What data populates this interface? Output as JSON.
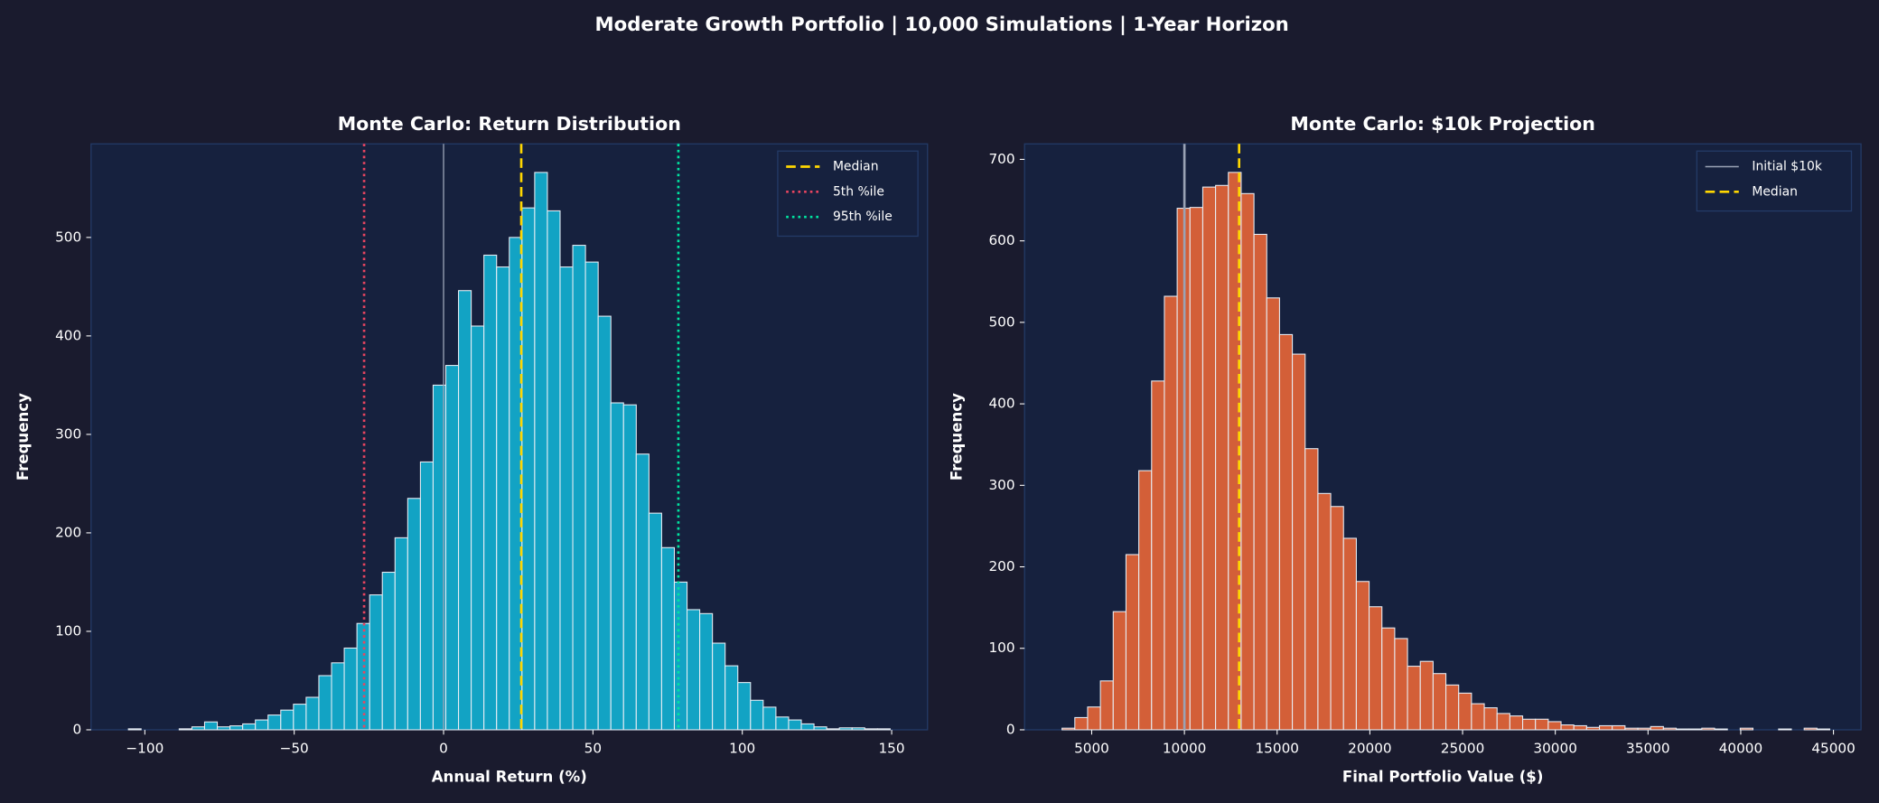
{
  "title": "Moderate Growth Portfolio | 10,000 Simulations | 1-Year Horizon",
  "chart_data": [
    {
      "type": "histogram",
      "title": "Monte Carlo: Return Distribution",
      "x_label": "Annual Return (%)",
      "y_label": "Frequency",
      "bins": [
        -105.5,
        -101.25,
        -97,
        -92.75,
        -88.5,
        -84.25,
        -80,
        -75.75,
        -71.5,
        -67.25,
        -63,
        -58.75,
        -54.5,
        -50.25,
        -46,
        -41.75,
        -37.5,
        -33.25,
        -29,
        -24.75,
        -20.5,
        -16.25,
        -12,
        -7.75,
        -3.5,
        0.75,
        5,
        9.25,
        13.5,
        17.75,
        22,
        26.25,
        30.5,
        34.75,
        39,
        43.25,
        47.5,
        51.75,
        56,
        60.25,
        64.5,
        68.75,
        73,
        77.25,
        81.5,
        85.75,
        90,
        94.25,
        98.5,
        102.75,
        107,
        111.25,
        115.5,
        119.75,
        124,
        128.25,
        132.5,
        136.75,
        141,
        145.25,
        149.5
      ],
      "values": [
        1,
        0,
        0,
        0,
        1,
        3,
        8,
        3,
        4,
        6,
        10,
        15,
        20,
        26,
        33,
        55,
        68,
        83,
        108,
        137,
        160,
        195,
        235,
        272,
        350,
        370,
        446,
        410,
        482,
        470,
        500,
        530,
        566,
        527,
        470,
        492,
        475,
        420,
        332,
        330,
        280,
        220,
        185,
        150,
        122,
        118,
        88,
        65,
        48,
        30,
        23,
        13,
        10,
        6,
        3,
        1,
        2,
        2,
        1,
        1
      ],
      "color": "#12a3c4",
      "xlim": [
        -118,
        162
      ],
      "ylim": [
        0,
        595
      ],
      "xticks": [
        {
          "value": -100,
          "label": "−100"
        },
        {
          "value": -50,
          "label": "−50"
        },
        0,
        50,
        100,
        150
      ],
      "yticks": [
        0,
        100,
        200,
        300,
        400,
        500
      ],
      "lines": [
        {
          "value": 0,
          "color": "#9aa3b5",
          "style": "solid"
        },
        {
          "name": "Median",
          "value": 26,
          "color": "#ffd700",
          "style": "dashed"
        },
        {
          "name": "5th %ile",
          "value": -26.6,
          "color": "#e94560",
          "style": "dotted"
        },
        {
          "name": "95th %ile",
          "value": 78.6,
          "color": "#00e5a0",
          "style": "dotted"
        }
      ],
      "legend": "upper right"
    },
    {
      "type": "histogram",
      "title": "Monte Carlo: $10k Projection",
      "x_label": "Final Portfolio Value ($)",
      "y_label": "Frequency",
      "bins": [
        3400,
        4090,
        4780,
        5470,
        6160,
        6850,
        7540,
        8230,
        8920,
        9610,
        10300,
        10990,
        11680,
        12370,
        13060,
        13750,
        14440,
        15130,
        15820,
        16510,
        17200,
        17890,
        18580,
        19270,
        19960,
        20650,
        21340,
        22030,
        22720,
        23410,
        24100,
        24790,
        25480,
        26170,
        26860,
        27550,
        28240,
        28930,
        29620,
        30310,
        31000,
        31690,
        32380,
        33070,
        33760,
        34450,
        35140,
        35830,
        36520,
        37210,
        37900,
        38590,
        39280,
        39970,
        40660,
        41350,
        42040,
        42730,
        43420,
        44110,
        44800
      ],
      "values": [
        2,
        15,
        28,
        60,
        145,
        215,
        318,
        428,
        532,
        640,
        641,
        666,
        668,
        684,
        658,
        608,
        530,
        485,
        461,
        345,
        290,
        274,
        235,
        182,
        151,
        125,
        112,
        78,
        84,
        69,
        55,
        45,
        32,
        27,
        20,
        17,
        13,
        13,
        10,
        6,
        5,
        3,
        5,
        5,
        2,
        2,
        4,
        2,
        1,
        1,
        2,
        1,
        0,
        2,
        0,
        0,
        1,
        0,
        2,
        1
      ],
      "color": "#d35f38",
      "xlim": [
        1381,
        46486
      ],
      "ylim": [
        0,
        719
      ],
      "xticks": [
        5000,
        10000,
        15000,
        20000,
        25000,
        30000,
        35000,
        40000,
        45000
      ],
      "yticks": [
        0,
        100,
        200,
        300,
        400,
        500,
        600,
        700
      ],
      "lines": [
        {
          "name": "Initial $10k",
          "value": 10000,
          "color": "#9aa3b5",
          "style": "solid"
        },
        {
          "name": "Median",
          "value": 12950,
          "color": "#ffd700",
          "style": "dashed"
        }
      ],
      "legend": "upper right"
    }
  ]
}
